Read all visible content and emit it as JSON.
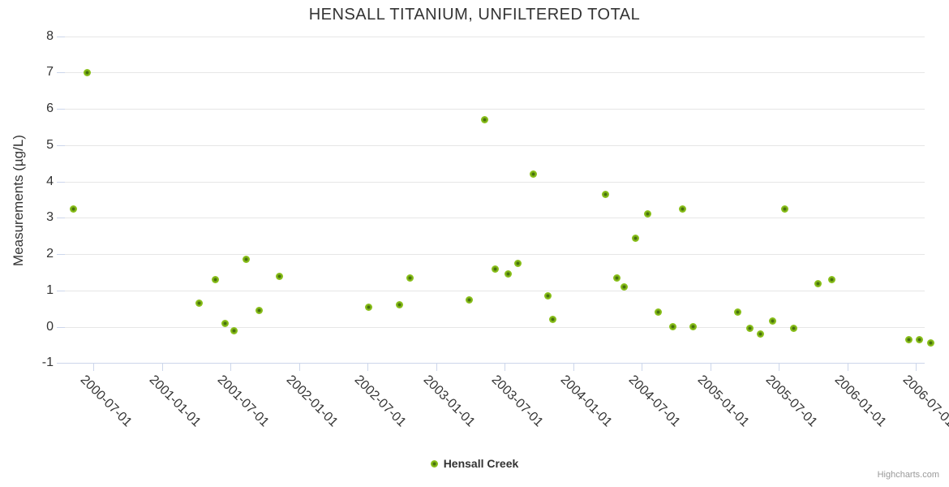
{
  "title": "HENSALL TITANIUM, UNFILTERED TOTAL",
  "legend": {
    "items": [
      {
        "label": "Hensall Creek",
        "marker_color": "#8cc21d"
      }
    ]
  },
  "credit": "Highcharts.com",
  "colors": {
    "marker_green": "#8cc21d",
    "marker_core": "#456e0e",
    "gridline": "#e6e6e6",
    "axis_line": "#ccd6eb",
    "text": "#333333",
    "credit_text": "#999999"
  },
  "chart_data": {
    "type": "scatter",
    "title": "HENSALL TITANIUM, UNFILTERED TOTAL",
    "xlabel": "",
    "ylabel": "Measurements (µg/L)",
    "ylim": [
      -1,
      8
    ],
    "grid": "horizontal",
    "legend_position": "bottom-center",
    "y_tick_labels": [
      "8",
      "7",
      "6",
      "5",
      "4",
      "3",
      "2",
      "1",
      "0",
      "-1"
    ],
    "x_tick_labels": [
      "2000-07-01",
      "2001-01-01",
      "2001-07-01",
      "2002-01-01",
      "2002-07-01",
      "2003-01-01",
      "2003-07-01",
      "2004-01-01",
      "2004-07-01",
      "2005-01-01",
      "2005-07-01",
      "2006-01-01",
      "2006-07-01"
    ],
    "series": [
      {
        "name": "Hensall Creek",
        "color": "#8cc21d",
        "points": [
          [
            "2000-05-10",
            3.25
          ],
          [
            "2000-06-14",
            7.0
          ],
          [
            "2001-04-10",
            0.65
          ],
          [
            "2001-05-23",
            1.3
          ],
          [
            "2001-06-18",
            0.1
          ],
          [
            "2001-07-10",
            -0.1
          ],
          [
            "2001-08-13",
            1.85
          ],
          [
            "2001-09-15",
            0.45
          ],
          [
            "2001-11-10",
            1.4
          ],
          [
            "2002-07-05",
            0.55
          ],
          [
            "2002-09-24",
            0.6
          ],
          [
            "2002-10-22",
            1.35
          ],
          [
            "2003-03-30",
            0.75
          ],
          [
            "2003-05-10",
            5.7
          ],
          [
            "2003-06-07",
            1.6
          ],
          [
            "2003-07-12",
            1.45
          ],
          [
            "2003-08-07",
            1.75
          ],
          [
            "2003-09-16",
            4.2
          ],
          [
            "2003-10-26",
            0.85
          ],
          [
            "2003-11-08",
            0.2
          ],
          [
            "2004-03-27",
            3.65
          ],
          [
            "2004-04-25",
            1.35
          ],
          [
            "2004-05-16",
            1.1
          ],
          [
            "2004-06-14",
            2.45
          ],
          [
            "2004-07-18",
            3.1
          ],
          [
            "2004-08-15",
            0.4
          ],
          [
            "2004-09-22",
            0.0
          ],
          [
            "2004-10-18",
            3.25
          ],
          [
            "2004-11-15",
            0.0
          ],
          [
            "2005-03-15",
            0.4
          ],
          [
            "2005-04-16",
            -0.05
          ],
          [
            "2005-05-14",
            -0.2
          ],
          [
            "2005-06-16",
            0.15
          ],
          [
            "2005-07-18",
            3.25
          ],
          [
            "2005-08-11",
            -0.03
          ],
          [
            "2005-10-13",
            1.2
          ],
          [
            "2005-11-19",
            1.3
          ],
          [
            "2006-06-14",
            -0.35
          ],
          [
            "2006-07-11",
            -0.35
          ],
          [
            "2006-08-10",
            -0.45
          ]
        ]
      }
    ]
  }
}
